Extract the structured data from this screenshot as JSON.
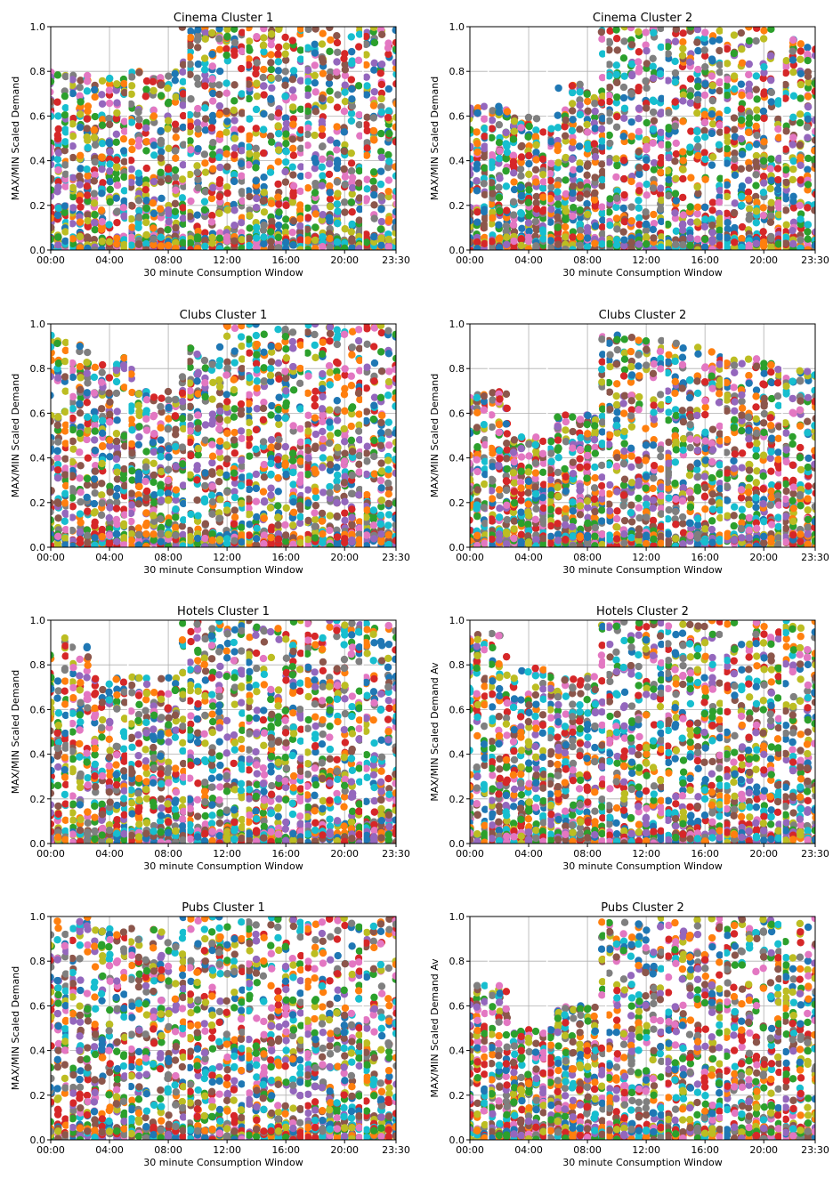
{
  "colors": [
    "#1f77b4",
    "#ff7f0e",
    "#2ca02c",
    "#d62728",
    "#9467bd",
    "#8c564b",
    "#e377c2",
    "#7f7f7f",
    "#bcbd22",
    "#17becf"
  ],
  "chart_data": [
    {
      "type": "scatter",
      "title": "Cinema Cluster 1",
      "xlabel": "30 minute Consumption Window",
      "ylabel": "MAX/MIN Scaled Demand",
      "x_ticks": [
        "00:00",
        "04:00",
        "08:00",
        "12:00",
        "16:00",
        "20:00",
        "23:30"
      ],
      "y_ticks": [
        "0.0",
        "0.2",
        "0.4",
        "0.6",
        "0.8",
        "1.0"
      ],
      "xlim": [
        0,
        23.5
      ],
      "ylim": [
        0,
        1
      ],
      "grid": true,
      "series_count": "many",
      "x_slots": 48,
      "x_unit": "hours",
      "profile_y_range_by_window": [
        [
          0.0,
          0.8
        ],
        [
          0.0,
          0.8
        ],
        [
          0.0,
          0.8
        ],
        [
          0.0,
          1.0
        ],
        [
          0.0,
          1.0
        ],
        [
          0.0,
          1.0
        ],
        [
          0.0,
          1.0
        ],
        [
          0.0,
          1.0
        ]
      ]
    },
    {
      "type": "scatter",
      "title": "Cinema Cluster 2",
      "xlabel": "30 minute Consumption Window",
      "ylabel": "MAX/MIN Scaled Demand",
      "x_ticks": [
        "00:00",
        "04:00",
        "08:00",
        "12:00",
        "16:00",
        "20:00",
        "23:30"
      ],
      "y_ticks": [
        "0.0",
        "0.2",
        "0.4",
        "0.6",
        "0.8",
        "1.0"
      ],
      "xlim": [
        0,
        23.5
      ],
      "ylim": [
        0,
        1
      ],
      "grid": true,
      "series_count": "many",
      "x_slots": 48,
      "x_unit": "hours",
      "profile_y_range_by_window": [
        [
          0.0,
          0.65
        ],
        [
          0.0,
          0.6
        ],
        [
          0.0,
          0.75
        ],
        [
          0.0,
          1.0
        ],
        [
          0.0,
          1.0
        ],
        [
          0.0,
          1.0
        ],
        [
          0.0,
          1.0
        ],
        [
          0.0,
          0.95
        ]
      ]
    },
    {
      "type": "scatter",
      "title": "Clubs Cluster 1",
      "xlabel": "30 minute Consumption Window",
      "ylabel": "MAX/MIN Scaled Demand",
      "x_ticks": [
        "00:00",
        "04:00",
        "08:00",
        "12:00",
        "16:00",
        "20:00",
        "23:30"
      ],
      "y_ticks": [
        "0.0",
        "0.2",
        "0.4",
        "0.6",
        "0.8",
        "1.0"
      ],
      "xlim": [
        0,
        23.5
      ],
      "ylim": [
        0,
        1
      ],
      "grid": true,
      "series_count": "many",
      "x_slots": 48,
      "x_unit": "hours",
      "profile_y_range_by_window": [
        [
          0.0,
          0.95
        ],
        [
          0.0,
          0.85
        ],
        [
          0.0,
          0.7
        ],
        [
          0.0,
          0.9
        ],
        [
          0.0,
          1.0
        ],
        [
          0.0,
          1.0
        ],
        [
          0.0,
          1.0
        ],
        [
          0.0,
          1.0
        ]
      ]
    },
    {
      "type": "scatter",
      "title": "Clubs Cluster 2",
      "xlabel": "30 minute Consumption Window",
      "ylabel": "MAX/MIN Scaled Demand",
      "x_ticks": [
        "00:00",
        "04:00",
        "08:00",
        "12:00",
        "16:00",
        "20:00",
        "23:30"
      ],
      "y_ticks": [
        "0.0",
        "0.2",
        "0.4",
        "0.6",
        "0.8",
        "1.0"
      ],
      "xlim": [
        0,
        23.5
      ],
      "ylim": [
        0,
        1
      ],
      "grid": true,
      "series_count": "many",
      "x_slots": 48,
      "x_unit": "hours",
      "profile_y_range_by_window": [
        [
          0.0,
          0.7
        ],
        [
          0.0,
          0.5
        ],
        [
          0.0,
          0.6
        ],
        [
          0.0,
          0.95
        ],
        [
          0.0,
          0.95
        ],
        [
          0.0,
          0.9
        ],
        [
          0.0,
          0.85
        ],
        [
          0.0,
          0.8
        ]
      ]
    },
    {
      "type": "scatter",
      "title": "Hotels Cluster 1",
      "xlabel": "30 minute Consumption Window",
      "ylabel": "MAX/MIN Scaled Demand",
      "x_ticks": [
        "00:00",
        "04:00",
        "08:00",
        "12:00",
        "16:00",
        "20:00",
        "23:30"
      ],
      "y_ticks": [
        "0.0",
        "0.2",
        "0.4",
        "0.6",
        "0.8",
        "1.0"
      ],
      "xlim": [
        0,
        23.5
      ],
      "ylim": [
        0,
        1
      ],
      "grid": true,
      "series_count": "many",
      "x_slots": 48,
      "x_unit": "hours",
      "profile_y_range_by_window": [
        [
          0.0,
          0.95
        ],
        [
          0.0,
          0.75
        ],
        [
          0.0,
          0.75
        ],
        [
          0.0,
          1.0
        ],
        [
          0.0,
          1.0
        ],
        [
          0.0,
          1.0
        ],
        [
          0.0,
          1.0
        ],
        [
          0.0,
          1.0
        ]
      ]
    },
    {
      "type": "scatter",
      "title": "Hotels Cluster 2",
      "xlabel": "30 minute Consumption Window",
      "ylabel": "MAX/MIN Scaled Demand Av",
      "x_ticks": [
        "00:00",
        "04:00",
        "08:00",
        "12:00",
        "16:00",
        "20:00",
        "23:30"
      ],
      "y_ticks": [
        "0.0",
        "0.2",
        "0.4",
        "0.6",
        "0.8",
        "1.0"
      ],
      "xlim": [
        0,
        23.5
      ],
      "ylim": [
        0,
        1
      ],
      "grid": true,
      "series_count": "many",
      "x_slots": 48,
      "x_unit": "hours",
      "profile_y_range_by_window": [
        [
          0.0,
          0.95
        ],
        [
          0.0,
          0.8
        ],
        [
          0.0,
          0.75
        ],
        [
          0.0,
          1.0
        ],
        [
          0.0,
          1.0
        ],
        [
          0.0,
          1.0
        ],
        [
          0.0,
          1.0
        ],
        [
          0.0,
          1.0
        ]
      ]
    },
    {
      "type": "scatter",
      "title": "Pubs Cluster 1",
      "xlabel": "30 minute Consumption Window",
      "ylabel": "MAX/MIN Scaled Demand",
      "x_ticks": [
        "00:00",
        "04:00",
        "08:00",
        "12:00",
        "16:00",
        "20:00",
        "23:30"
      ],
      "y_ticks": [
        "0.0",
        "0.2",
        "0.4",
        "0.6",
        "0.8",
        "1.0"
      ],
      "xlim": [
        0,
        23.5
      ],
      "ylim": [
        0,
        1
      ],
      "grid": true,
      "series_count": "many",
      "x_slots": 48,
      "x_unit": "hours",
      "profile_y_range_by_window": [
        [
          0.0,
          1.0
        ],
        [
          0.0,
          0.95
        ],
        [
          0.0,
          0.95
        ],
        [
          0.0,
          1.0
        ],
        [
          0.0,
          1.0
        ],
        [
          0.0,
          1.0
        ],
        [
          0.0,
          1.0
        ],
        [
          0.0,
          1.0
        ]
      ]
    },
    {
      "type": "scatter",
      "title": "Pubs Cluster 2",
      "xlabel": "30 minute Consumption Window",
      "ylabel": "MAX/MIN Scaled Demand Av",
      "x_ticks": [
        "00:00",
        "04:00",
        "08:00",
        "12:00",
        "16:00",
        "20:00",
        "23:30"
      ],
      "y_ticks": [
        "0.0",
        "0.2",
        "0.4",
        "0.6",
        "0.8",
        "1.0"
      ],
      "xlim": [
        0,
        23.5
      ],
      "ylim": [
        0,
        1
      ],
      "grid": true,
      "series_count": "many",
      "x_slots": 48,
      "x_unit": "hours",
      "profile_y_range_by_window": [
        [
          0.0,
          0.7
        ],
        [
          0.0,
          0.5
        ],
        [
          0.0,
          0.6
        ],
        [
          0.0,
          1.0
        ],
        [
          0.0,
          1.0
        ],
        [
          0.0,
          1.0
        ],
        [
          0.0,
          1.0
        ],
        [
          0.0,
          1.0
        ]
      ]
    }
  ]
}
